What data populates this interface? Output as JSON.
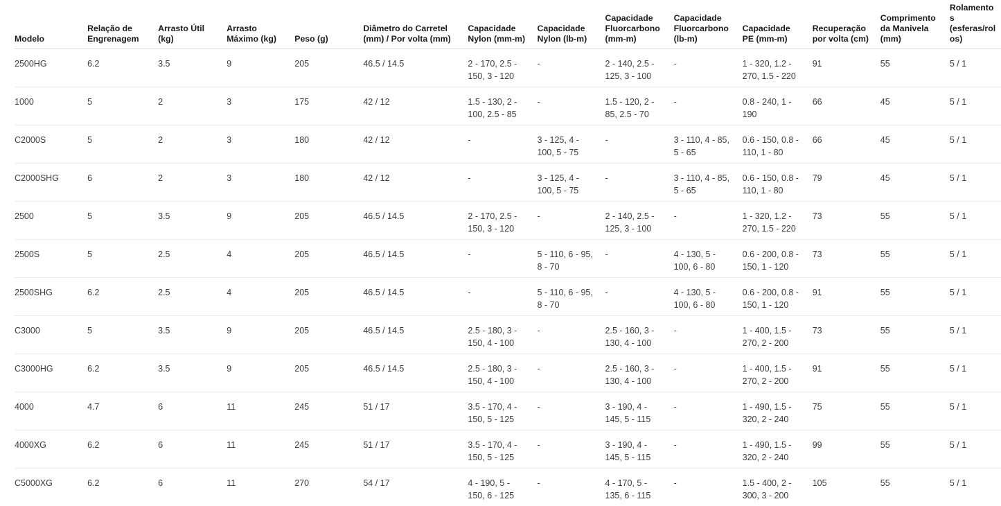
{
  "colors": {
    "background": "#ffffff",
    "header_text": "#1a1a1a",
    "body_text": "#3b3b3b",
    "header_divider": "#dcdcdc",
    "row_divider": "#ececec"
  },
  "chart_data": {
    "type": "table",
    "title": "",
    "columns": [
      "Modelo",
      "Relação de Engrenagem",
      "Arrasto Útil (kg)",
      "Arrasto Máximo (kg)",
      "Peso (g)",
      "Diâmetro do Carretel (mm) / Por volta (mm)",
      "Capacidade Nylon (mm-m)",
      "Capacidade Nylon (lb-m)",
      "Capacidade Fluorcarbono (mm-m)",
      "Capacidade Fluorcarbono (lb-m)",
      "Capacidade PE (mm-m)",
      "Recuperação por volta (cm)",
      "Comprimento da Manivela (mm)",
      "Rolamentos (esferas/rolos)"
    ],
    "rows": [
      [
        "2500HG",
        "6.2",
        "3.5",
        "9",
        "205",
        "46.5 / 14.5",
        "2 - 170, 2.5 - 150, 3 - 120",
        "-",
        "2 - 140, 2.5 - 125, 3 - 100",
        "-",
        "1 - 320, 1.2 - 270, 1.5 - 220",
        "91",
        "55",
        "5 / 1"
      ],
      [
        "1000",
        "5",
        "2",
        "3",
        "175",
        "42 / 12",
        "1.5 - 130, 2 - 100, 2.5 - 85",
        "-",
        "1.5 - 120, 2 - 85, 2.5 - 70",
        "-",
        "0.8 - 240, 1 - 190",
        "66",
        "45",
        "5 / 1"
      ],
      [
        "C2000S",
        "5",
        "2",
        "3",
        "180",
        "42 / 12",
        "-",
        "3 - 125, 4 - 100, 5 - 75",
        "-",
        "3 - 110, 4 - 85, 5 - 65",
        "0.6 - 150, 0.8 - 110, 1 - 80",
        "66",
        "45",
        "5 / 1"
      ],
      [
        "C2000SHG",
        "6",
        "2",
        "3",
        "180",
        "42 / 12",
        "-",
        "3 - 125, 4 - 100, 5 - 75",
        "-",
        "3 - 110, 4 - 85, 5 - 65",
        "0.6 - 150, 0.8 - 110, 1 - 80",
        "79",
        "45",
        "5 / 1"
      ],
      [
        "2500",
        "5",
        "3.5",
        "9",
        "205",
        "46.5 / 14.5",
        "2 - 170, 2.5 - 150, 3 - 120",
        "-",
        "2 - 140, 2.5 - 125, 3 - 100",
        "-",
        "1 - 320, 1.2 - 270, 1.5 - 220",
        "73",
        "55",
        "5 / 1"
      ],
      [
        "2500S",
        "5",
        "2.5",
        "4",
        "205",
        "46.5 / 14.5",
        "-",
        "5 - 110, 6 - 95, 8 - 70",
        "-",
        "4 - 130, 5 - 100, 6 - 80",
        "0.6 - 200, 0.8 - 150, 1 - 120",
        "73",
        "55",
        "5 / 1"
      ],
      [
        "2500SHG",
        "6.2",
        "2.5",
        "4",
        "205",
        "46.5 / 14.5",
        "-",
        "5 - 110, 6 - 95, 8 - 70",
        "-",
        "4 - 130, 5 - 100, 6 - 80",
        "0.6 - 200, 0.8 - 150, 1 - 120",
        "91",
        "55",
        "5 / 1"
      ],
      [
        "C3000",
        "5",
        "3.5",
        "9",
        "205",
        "46.5 / 14.5",
        "2.5 - 180, 3 - 150, 4 - 100",
        "-",
        "2.5 - 160, 3 - 130, 4 - 100",
        "-",
        "1 - 400, 1.5 - 270, 2 - 200",
        "73",
        "55",
        "5 / 1"
      ],
      [
        "C3000HG",
        "6.2",
        "3.5",
        "9",
        "205",
        "46.5 / 14.5",
        "2.5 - 180, 3 - 150, 4 - 100",
        "-",
        "2.5 - 160, 3 - 130, 4 - 100",
        "-",
        "1 - 400, 1.5 - 270, 2 - 200",
        "91",
        "55",
        "5 / 1"
      ],
      [
        "4000",
        "4.7",
        "6",
        "11",
        "245",
        "51 / 17",
        "3.5 - 170, 4 - 150, 5 - 125",
        "-",
        "3 - 190, 4 - 145, 5 - 115",
        "-",
        "1 - 490, 1.5 - 320, 2 - 240",
        "75",
        "55",
        "5 / 1"
      ],
      [
        "4000XG",
        "6.2",
        "6",
        "11",
        "245",
        "51 / 17",
        "3.5 - 170, 4 - 150, 5 - 125",
        "-",
        "3 - 190, 4 - 145, 5 - 115",
        "-",
        "1 - 490, 1.5 - 320, 2 - 240",
        "99",
        "55",
        "5 / 1"
      ],
      [
        "C5000XG",
        "6.2",
        "6",
        "11",
        "270",
        "54 / 17",
        "4 - 190, 5 - 150, 6 - 125",
        "-",
        "4 - 170, 5 - 135, 6 - 115",
        "-",
        "1.5 - 400, 2 - 300, 3 - 200",
        "105",
        "55",
        "5 / 1"
      ]
    ]
  }
}
